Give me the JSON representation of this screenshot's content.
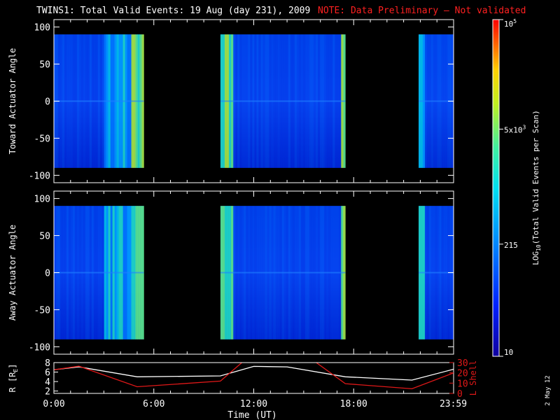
{
  "title": "TWINS1: Total Valid Events: 19 Aug (day 231), 2009",
  "note": "NOTE: Data Preliminary — Not validated",
  "stamp": "2 May 12",
  "colors": {
    "background": "#000000",
    "frame": "#ffffff",
    "note": "#ff2020",
    "lshell": "#e01818",
    "radius": "#ffffff"
  },
  "chart_data": [
    {
      "type": "heatmap",
      "ylabel": "Toward Actuator Angle",
      "ylim": [
        -110,
        110
      ],
      "yticks": [
        100,
        50,
        0,
        -50,
        -100
      ],
      "xlim": [
        0,
        24
      ],
      "data_angle_range": [
        -90,
        90
      ],
      "time_blocks": [
        {
          "start": 0.0,
          "end": 5.4
        },
        {
          "start": 10.0,
          "end": 17.5
        },
        {
          "start": 21.9,
          "end": 24.0
        }
      ]
    },
    {
      "type": "heatmap",
      "ylabel": "Away Actuator Angle",
      "ylim": [
        -110,
        110
      ],
      "yticks": [
        100,
        50,
        0,
        -50,
        -100
      ],
      "xlim": [
        0,
        24
      ],
      "data_angle_range": [
        -90,
        90
      ],
      "time_blocks": [
        {
          "start": 0.0,
          "end": 5.4
        },
        {
          "start": 10.0,
          "end": 17.5
        },
        {
          "start": 21.9,
          "end": 24.0
        }
      ]
    },
    {
      "type": "line",
      "xlabel": "Time (UT)",
      "xlim": [
        0,
        24
      ],
      "xticks": [
        {
          "value": 0,
          "label": "0:00"
        },
        {
          "value": 6,
          "label": "6:00"
        },
        {
          "value": 12,
          "label": "12:00"
        },
        {
          "value": 18,
          "label": "18:00"
        },
        {
          "value": 23.98,
          "label": "23:59"
        }
      ],
      "ylabel_left": "R [R",
      "ylabel_left_sub": "E",
      "ylabel_left_close": "]",
      "ylim_left": [
        1.5,
        8
      ],
      "yticks_left": [
        2,
        4,
        6,
        8
      ],
      "ylabel_right": "L Shell",
      "ylim_right": [
        0,
        30
      ],
      "yticks_right": [
        0,
        10,
        20,
        30
      ],
      "series": [
        {
          "axis": "left",
          "x": [
            0,
            1.5,
            5,
            10,
            12,
            14,
            17.5,
            21.5,
            24
          ],
          "values": [
            6.5,
            7.1,
            5.0,
            5.2,
            7.2,
            7.1,
            5.0,
            4.3,
            6.6
          ]
        },
        {
          "axis": "right",
          "x": [
            0,
            1.5,
            5,
            10,
            11.5,
            15.5,
            17.5,
            21.5,
            24
          ],
          "values": [
            23,
            26.5,
            6.5,
            12,
            33,
            33,
            9.5,
            4.5,
            20
          ]
        }
      ]
    }
  ],
  "colorbar": {
    "label": "LOG",
    "label_sub": "10",
    "label_rest": "(Total Valid Events per Scan)",
    "scale": "log",
    "range": [
      10,
      100000
    ],
    "ticks": [
      {
        "value": 100000,
        "base": "10",
        "exp": "5"
      },
      {
        "value": 5000,
        "base": "5x10",
        "exp": "3"
      },
      {
        "value": 215,
        "base": "215",
        "exp": ""
      },
      {
        "value": 10,
        "base": "10",
        "exp": ""
      }
    ]
  }
}
